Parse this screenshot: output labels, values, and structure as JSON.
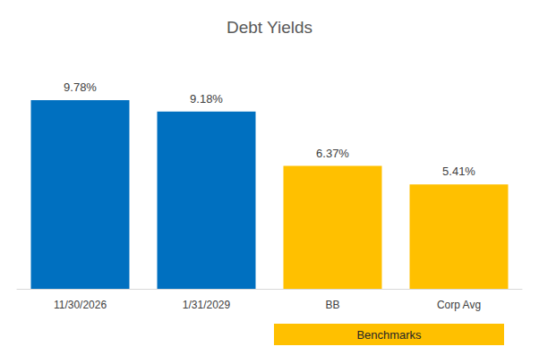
{
  "chart_data": {
    "type": "bar",
    "title": "Debt Yields",
    "categories": [
      "11/30/2026",
      "1/31/2029",
      "BB",
      "Corp Avg"
    ],
    "values": [
      9.78,
      9.18,
      6.37,
      5.41
    ],
    "value_labels": [
      "9.78%",
      "9.18%",
      "6.37%",
      "5.41%"
    ],
    "colors": [
      "#0070c0",
      "#0070c0",
      "#ffc000",
      "#ffc000"
    ],
    "ylim": [
      0,
      12
    ],
    "yticks": [
      0,
      2,
      4,
      6,
      8,
      10,
      12
    ],
    "grid": false,
    "data_labels": true,
    "tick_labels": "x",
    "annotations": [
      {
        "text": "Benchmarks",
        "from": "BB",
        "to": "Corp Avg",
        "color": "#ffc000"
      }
    ]
  }
}
